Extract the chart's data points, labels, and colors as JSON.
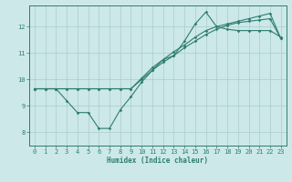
{
  "background_color": "#cce8e8",
  "grid_color": "#aacccc",
  "line_color": "#2e7d72",
  "xlabel": "Humidex (Indice chaleur)",
  "xlim": [
    -0.5,
    23.5
  ],
  "ylim": [
    7.5,
    12.8
  ],
  "yticks": [
    8,
    9,
    10,
    11,
    12
  ],
  "xticks": [
    0,
    1,
    2,
    3,
    4,
    5,
    6,
    7,
    8,
    9,
    10,
    11,
    12,
    13,
    14,
    15,
    16,
    17,
    18,
    19,
    20,
    21,
    22,
    23
  ],
  "line1_x": [
    0,
    1,
    2,
    3,
    4,
    5,
    6,
    7,
    8,
    9,
    10,
    11,
    12,
    13,
    14,
    15,
    16,
    17,
    18,
    19,
    20,
    21,
    22,
    23
  ],
  "line1_y": [
    9.65,
    9.65,
    9.65,
    9.2,
    8.75,
    8.75,
    8.15,
    8.15,
    8.85,
    9.35,
    9.9,
    10.35,
    10.75,
    10.9,
    11.45,
    12.1,
    12.55,
    12.0,
    11.9,
    11.85,
    11.85,
    11.85,
    11.85,
    11.6
  ],
  "line2_x": [
    0,
    1,
    2,
    3,
    4,
    5,
    6,
    7,
    8,
    9,
    10,
    11,
    12,
    13,
    14,
    15,
    16,
    17,
    18,
    19,
    20,
    21,
    22,
    23
  ],
  "line2_y": [
    9.65,
    9.65,
    9.65,
    9.65,
    9.65,
    9.65,
    9.65,
    9.65,
    9.65,
    9.65,
    10.05,
    10.45,
    10.75,
    11.05,
    11.3,
    11.6,
    11.85,
    12.0,
    12.1,
    12.2,
    12.3,
    12.4,
    12.5,
    11.55
  ],
  "line3_x": [
    0,
    1,
    2,
    3,
    4,
    5,
    6,
    7,
    8,
    9,
    10,
    11,
    12,
    13,
    14,
    15,
    16,
    17,
    18,
    19,
    20,
    21,
    22,
    23
  ],
  "line3_y": [
    9.65,
    9.65,
    9.65,
    9.65,
    9.65,
    9.65,
    9.65,
    9.65,
    9.65,
    9.65,
    10.0,
    10.35,
    10.65,
    10.9,
    11.2,
    11.45,
    11.7,
    11.9,
    12.05,
    12.15,
    12.2,
    12.25,
    12.3,
    11.55
  ]
}
